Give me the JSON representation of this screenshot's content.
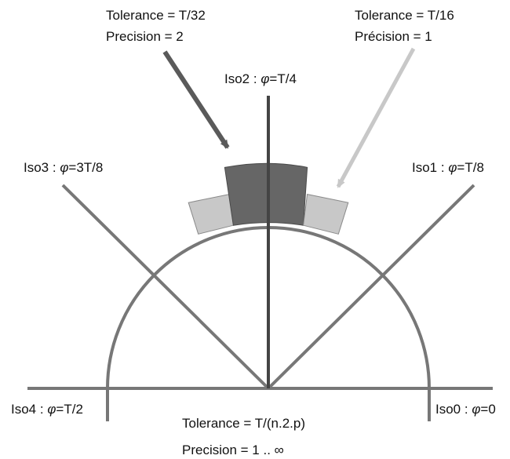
{
  "colors": {
    "background": "#ffffff",
    "circle": "#777777",
    "iso_lines": "#777777",
    "iso2_line": "#444444",
    "sector_dark": "#666666",
    "sector_light": "#c8c8c8",
    "arrow_dark": "#5a5a5a",
    "arrow_light": "#c8c8c8",
    "text": "#111111"
  },
  "callouts": {
    "t32": {
      "tolerance": "Tolerance = T/32",
      "precision": "Precision = 2"
    },
    "t16": {
      "tolerance": "Tolerance = T/16",
      "precision": "Précision = 1"
    }
  },
  "isolines": {
    "iso0": {
      "name": "Iso0",
      "phase": "=0"
    },
    "iso1": {
      "name": "Iso1",
      "phase": "=T/8"
    },
    "iso2": {
      "name": "Iso2",
      "phase": "=T/4"
    },
    "iso3": {
      "name": "Iso3",
      "phase": "=3T/8"
    },
    "iso4": {
      "name": "Iso4",
      "phase": "=T/2"
    }
  },
  "symbols": {
    "sep": " : ",
    "phi": "φ"
  },
  "bottom": {
    "tolerance": "Tolerance = T/(n.2.p)",
    "precision": "Precision = 1 .. ∞"
  }
}
